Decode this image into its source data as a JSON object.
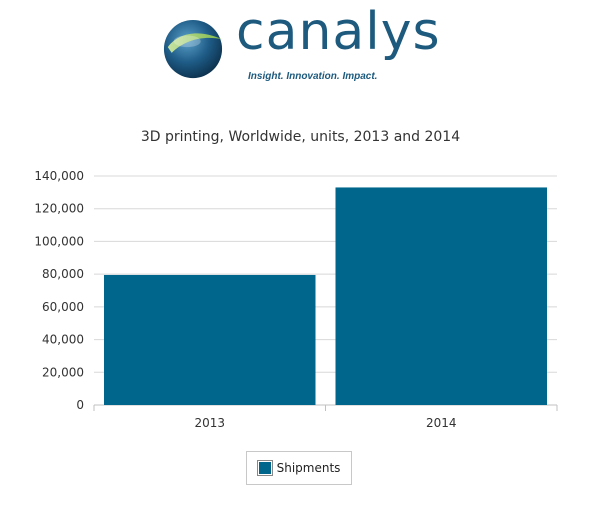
{
  "logo": {
    "wordmark": "canalys",
    "tagline": "Insight. Innovation. Impact."
  },
  "colors": {
    "bar": "#00668c",
    "grid": "#d8d8d8",
    "brand": "#1d5a7e"
  },
  "chart_data": {
    "type": "bar",
    "title": "3D printing, Worldwide, units, 2013 and 2014",
    "xlabel": "",
    "ylabel": "",
    "categories": [
      "2013",
      "2014"
    ],
    "series": [
      {
        "name": "Shipments",
        "values": [
          79500,
          133000
        ]
      }
    ],
    "ylim": [
      0,
      140000
    ],
    "yticks": [
      0,
      20000,
      40000,
      60000,
      80000,
      100000,
      120000,
      140000
    ],
    "ytick_labels": [
      "0",
      "20,000",
      "40,000",
      "60,000",
      "80,000",
      "100,000",
      "120,000",
      "140,000"
    ],
    "grid": true,
    "legend_position": "bottom"
  }
}
